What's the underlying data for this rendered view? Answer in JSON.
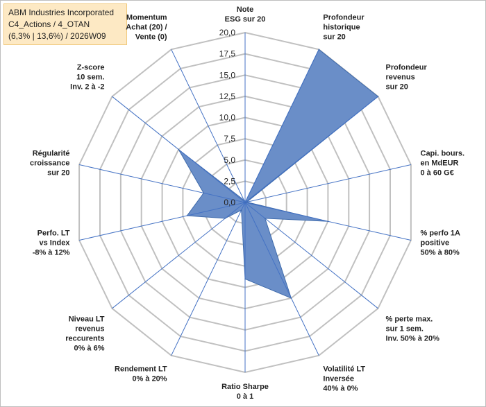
{
  "header": {
    "company": "ABM Industries Incorporated",
    "portfolio": "C4_Actions / 4_OTAN",
    "stats": "(6,3% | 13,6%) / 2026W09"
  },
  "chart_data": {
    "type": "radar",
    "title": "",
    "rmin": 0,
    "rmax": 20,
    "tick_step": 2.5,
    "tick_labels": [
      "0,0",
      "2,5",
      "5,0",
      "7,5",
      "10,0",
      "12,5",
      "15,0",
      "17,5",
      "20,0"
    ],
    "axes": [
      {
        "label": [
          "Note",
          "ESG sur 20"
        ],
        "value": 0
      },
      {
        "label": [
          "Profondeur",
          "historique",
          "sur 20"
        ],
        "value": 20
      },
      {
        "label": [
          "Profondeur",
          "revenus",
          "sur 20"
        ],
        "value": 20
      },
      {
        "label": [
          "Capi. bours.",
          "en MdEUR",
          "0 à 60 G€"
        ],
        "value": 0.2
      },
      {
        "label": [
          "% perfo 1A",
          "positive",
          "50% à 80%"
        ],
        "value": 10
      },
      {
        "label": [
          "% perte max.",
          "sur 1 sem.",
          "Inv. 50% à 20%"
        ],
        "value": 3
      },
      {
        "label": [
          "Volatilité LT",
          "Inversée",
          "40% à 0%"
        ],
        "value": 12.5
      },
      {
        "label": [
          "Ratio Sharpe",
          "0 à 1"
        ],
        "value": 9
      },
      {
        "label": [
          "Rendement LT",
          "0% à 20%"
        ],
        "value": 1
      },
      {
        "label": [
          "Niveau LT",
          "revenus",
          "reccurents",
          "0% à 6%"
        ],
        "value": 3
      },
      {
        "label": [
          "Perfo. LT",
          "vs Index",
          "-8% à 12%"
        ],
        "value": 7
      },
      {
        "label": [
          "Régularité",
          "croissance",
          "sur 20"
        ],
        "value": 5
      },
      {
        "label": [
          "Z-score",
          "10 sem.",
          "Inv. 2 à -2"
        ],
        "value": 10
      },
      {
        "label": [
          "Momentum",
          "Achat (20) /",
          "Vente (0)"
        ],
        "value": 0.3
      }
    ],
    "colors": {
      "fill": "#6a8ec8",
      "stroke": "#3e6aab",
      "grid": "#c0c0c0",
      "spoke": "#4472c4"
    }
  }
}
